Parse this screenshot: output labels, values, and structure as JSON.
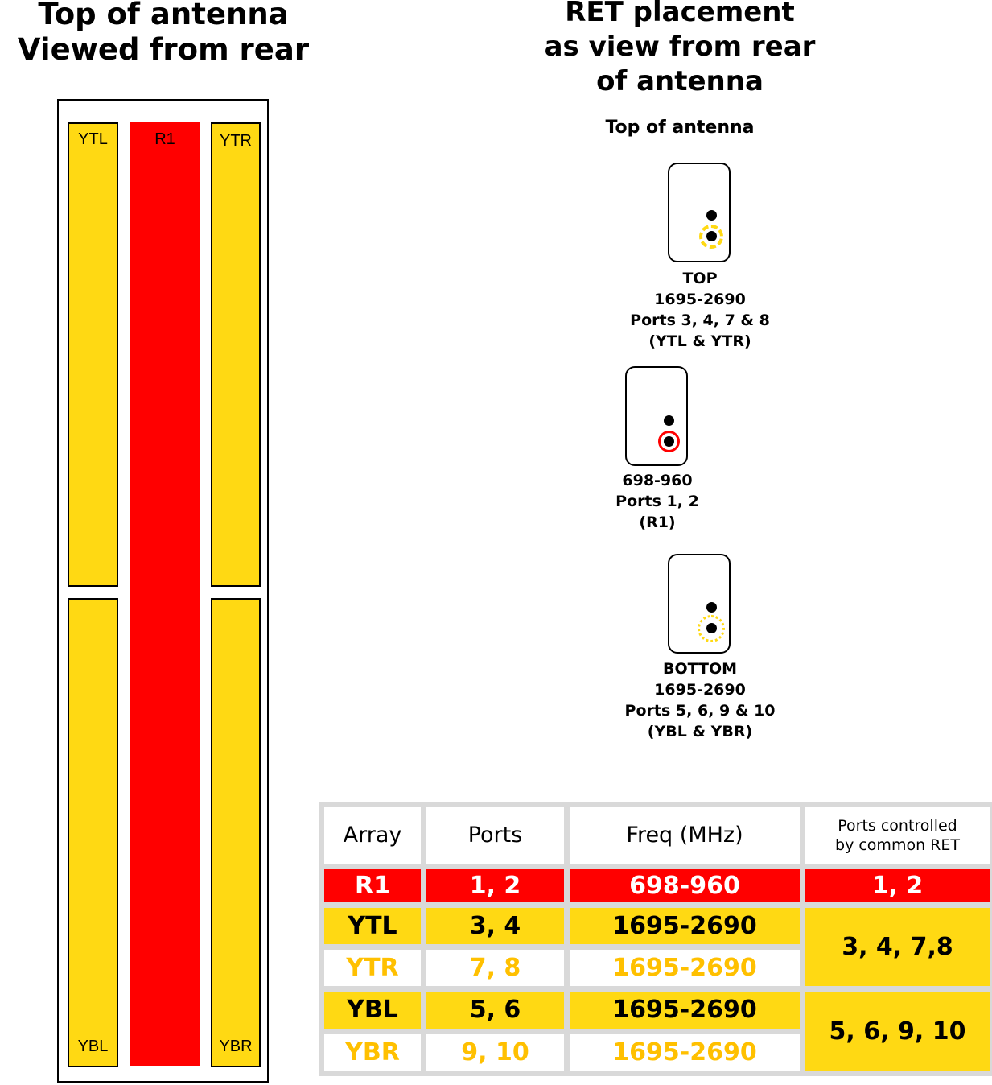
{
  "left_title": [
    "Top of antenna",
    "Viewed from rear"
  ],
  "right_title": [
    "RET placement",
    "as view from rear",
    "of antenna"
  ],
  "top_of_antenna": "Top of antenna",
  "arrays": {
    "ytl": "YTL",
    "ytr": "YTR",
    "r1": "R1",
    "ybl": "YBL",
    "ybr": "YBR"
  },
  "rets": {
    "top": [
      "TOP",
      "1695-2690",
      "Ports 3, 4, 7 & 8",
      "(YTL & YTR)"
    ],
    "mid": [
      "698-960",
      "Ports 1, 2",
      "(R1)"
    ],
    "bottom": [
      "BOTTOM",
      "1695-2690",
      "Ports 5, 6, 9 & 10",
      "(YBL & YBR)"
    ]
  },
  "table": {
    "headers": [
      "Array",
      "Ports",
      "Freq (MHz)",
      "Ports controlled",
      "by common RET"
    ],
    "rows": [
      {
        "array": "R1",
        "ports": "1, 2",
        "freq": "698-960",
        "ret": "1, 2"
      },
      {
        "array": "YTL",
        "ports": "3, 4",
        "freq": "1695-2690",
        "ret": "3, 4, 7,8"
      },
      {
        "array": "YTR",
        "ports": "7, 8",
        "freq": "1695-2690"
      },
      {
        "array": "YBL",
        "ports": "5, 6",
        "freq": "1695-2690",
        "ret": "5, 6, 9, 10"
      },
      {
        "array": "YBR",
        "ports": "9, 10",
        "freq": "1695-2690"
      }
    ]
  },
  "colors": {
    "yellow": "#ffd913",
    "red": "#ff0000",
    "orange_text": "#ffc000",
    "table_grid": "#d9d9d9"
  }
}
